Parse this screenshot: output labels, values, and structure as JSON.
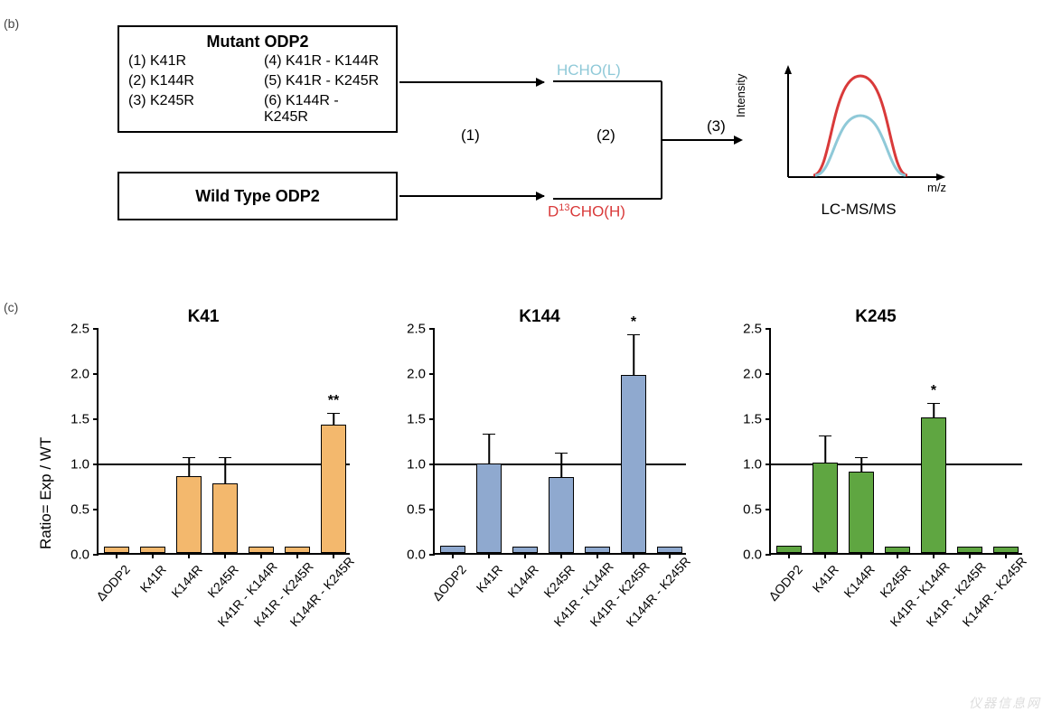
{
  "panel_b_label": "(b)",
  "panel_c_label": "(c)",
  "panel_b": {
    "mutant_box": {
      "title": "Mutant ODP2",
      "items": [
        {
          "idx": "(1)",
          "name": "K41R"
        },
        {
          "idx": "(2)",
          "name": "K144R"
        },
        {
          "idx": "(3)",
          "name": "K245R"
        },
        {
          "idx": "(4)",
          "name": "K41R - K144R"
        },
        {
          "idx": "(5)",
          "name": "K41R - K245R"
        },
        {
          "idx": "(6)",
          "name": "K144R - K245R"
        }
      ]
    },
    "wt_box": {
      "label": "Wild Type ODP2"
    },
    "light_label": "HCHO(L)",
    "light_label_color": "#8fc9d8",
    "heavy_label_prefix": "D",
    "heavy_label_sup": "13",
    "heavy_label_suffix": "CHO(H)",
    "heavy_label_color": "#d93a3a",
    "step1": "(1)",
    "step2": "(2)",
    "step3": "(3)",
    "peak": {
      "y_axis": "Intensity",
      "x_axis": "m/z",
      "caption": "LC-MS/MS",
      "light_stroke": "#8fc9d8",
      "heavy_stroke": "#d93a3a"
    }
  },
  "panel_c": {
    "y_axis_title": "Ratio= Exp / WT",
    "y_max": 2.5,
    "y_ticks": [
      0.0,
      0.5,
      1.0,
      1.5,
      2.0,
      2.5
    ],
    "y_tick_labels": [
      "0.0",
      "0.5",
      "1.0",
      "1.5",
      "2.0",
      "2.5"
    ],
    "ref_line": 1.0,
    "categories": [
      "ΔODP2",
      "K41R",
      "K144R",
      "K245R",
      "K41R - K144R",
      "K41R - K245R",
      "K144R - K245R"
    ],
    "charts": [
      {
        "title": "K41",
        "color": "#f3b86d",
        "values": [
          0.07,
          0.07,
          0.85,
          0.77,
          0.07,
          0.07,
          1.42
        ],
        "errors": [
          0,
          0,
          0.21,
          0.29,
          0,
          0,
          0.13
        ],
        "sig": [
          "",
          "",
          "",
          "",
          "",
          "",
          "**"
        ]
      },
      {
        "title": "K144",
        "color": "#8fa9cf",
        "values": [
          0.08,
          0.99,
          0.07,
          0.84,
          0.07,
          1.97,
          0.07
        ],
        "errors": [
          0,
          0.33,
          0,
          0.27,
          0,
          0.45,
          0
        ],
        "sig": [
          "",
          "",
          "",
          "",
          "",
          "*",
          ""
        ]
      },
      {
        "title": "K245",
        "color": "#5fa641",
        "values": [
          0.08,
          1.0,
          0.9,
          0.07,
          1.5,
          0.07,
          0.07
        ],
        "errors": [
          0,
          0.3,
          0.16,
          0,
          0.16,
          0,
          0
        ],
        "sig": [
          "",
          "",
          "",
          "",
          "*",
          "",
          ""
        ]
      }
    ]
  }
}
